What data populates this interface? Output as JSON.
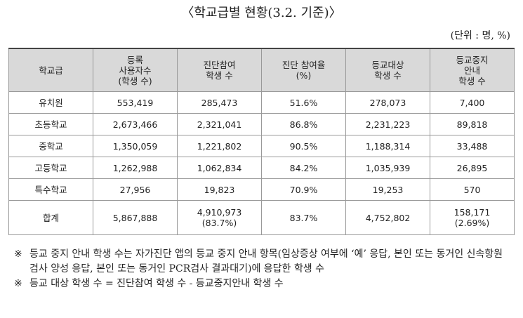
{
  "title": "〈학교급별 현황(3.2. 기준)〉",
  "unit": "(단위 : 명, %)",
  "table": {
    "header": [
      [
        "학교급"
      ],
      [
        "등록",
        "사용자수",
        "(학생 수)"
      ],
      [
        "진단참여",
        "학생 수"
      ],
      [
        "진단 참여율",
        "(%)"
      ],
      [
        "등교대상",
        "학생 수"
      ],
      [
        "등교중지",
        "안내",
        "학생 수"
      ]
    ],
    "rows": [
      [
        "유치원",
        "553,419",
        "285,473",
        "51.6%",
        "278,073",
        "7,400"
      ],
      [
        "초등학교",
        "2,673,466",
        "2,321,041",
        "86.8%",
        "2,231,223",
        "89,818"
      ],
      [
        "중학교",
        "1,350,059",
        "1,221,802",
        "90.5%",
        "1,188,314",
        "33,488"
      ],
      [
        "고등학교",
        "1,262,988",
        "1,062,834",
        "84.2%",
        "1,035,939",
        "26,895"
      ],
      [
        "특수학교",
        "27,956",
        "19,823",
        "70.9%",
        "19,253",
        "570"
      ],
      [
        "합계",
        "5,867,888",
        [
          "4,910,973",
          "(83.7%)"
        ],
        "83.7%",
        "4,752,802",
        [
          "158,171",
          "(2.69%)"
        ]
      ]
    ]
  },
  "notes": [
    {
      "mark": "※",
      "text": "등교 중지 안내 학생 수는 자가진단 앱의 등교 중지 안내 항목(임상증상 여부에 ‘예’ 응답, 본인 또는 동거인 신속항원검사 양성 응답, 본인 또는 동거인 PCR검사 결과대기)에 응답한 학생 수"
    },
    {
      "mark": "※",
      "text": "등교 대상 학생 수 = 진단참여 학생 수 - 등교중지안내 학생 수"
    }
  ]
}
